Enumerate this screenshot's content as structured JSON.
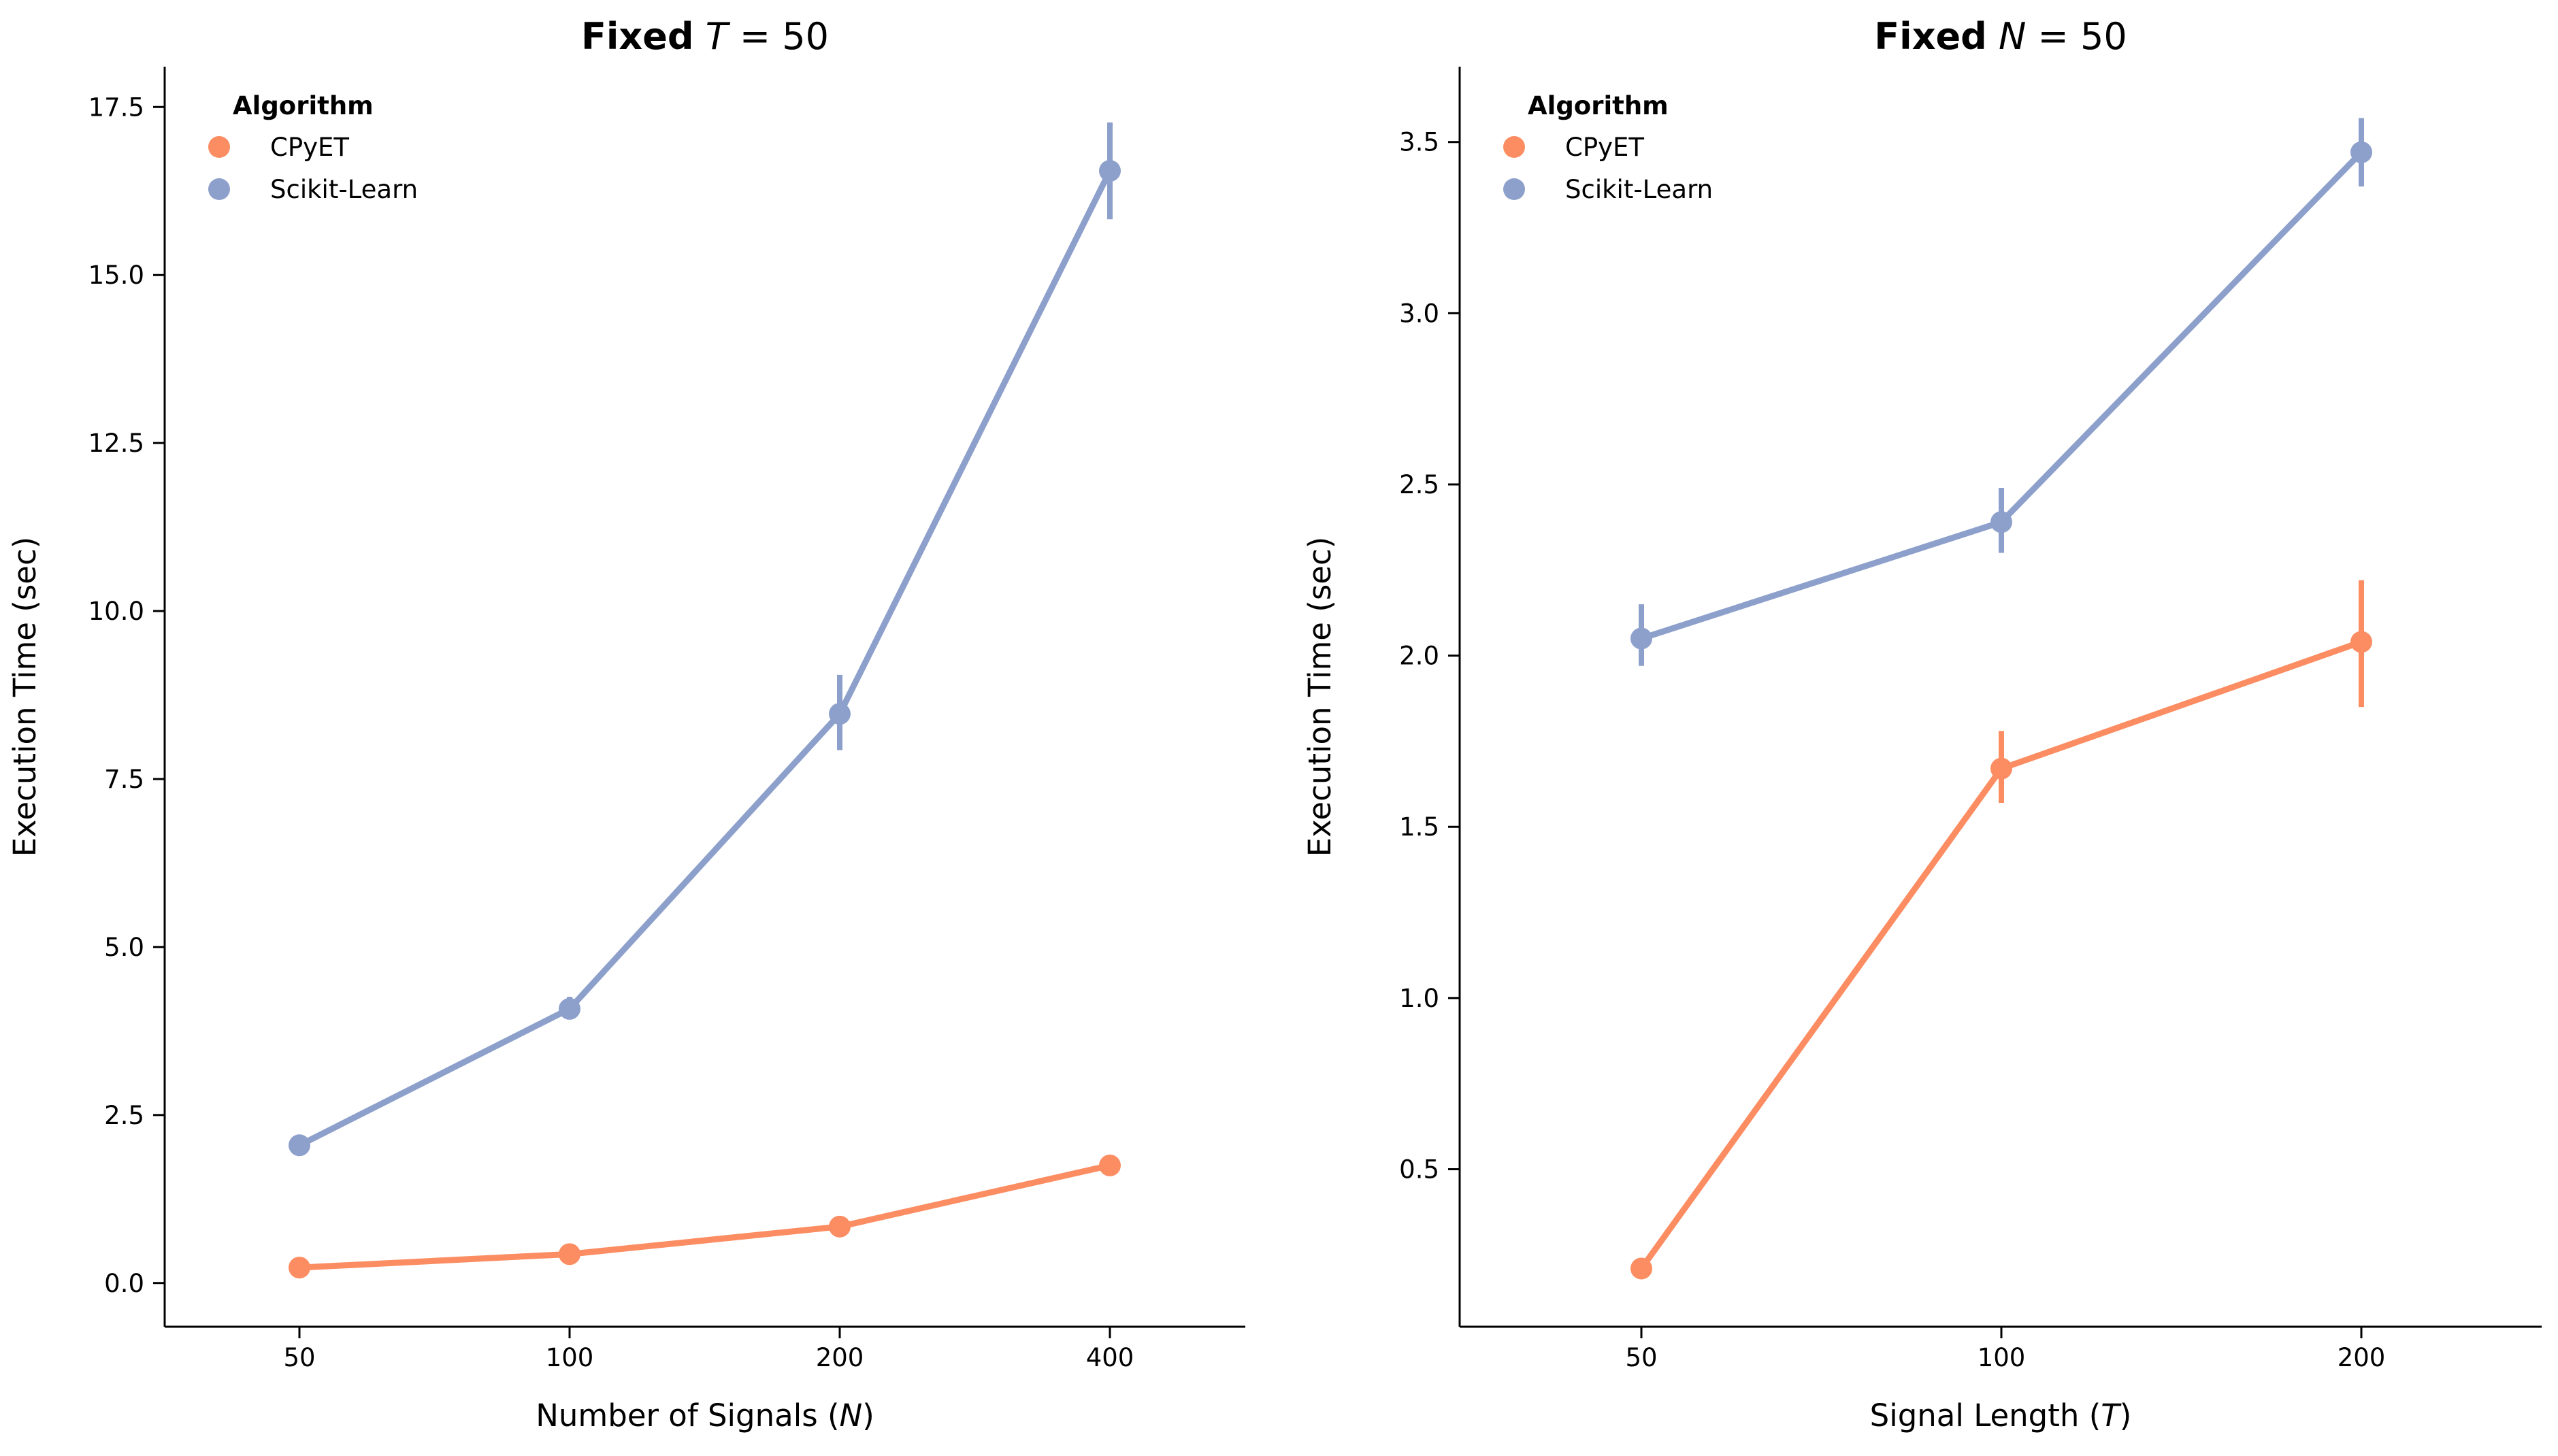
{
  "chart_data": [
    {
      "type": "line",
      "title_bold": "Fixed",
      "title_var": "T",
      "title_rest": " = 50",
      "xlabel_pre": "Number of Signals (",
      "xlabel_var": "N",
      "xlabel_post": ")",
      "ylabel": "Execution Time (sec)",
      "categories": [
        "50",
        "100",
        "200",
        "400"
      ],
      "ylim": [
        -0.65,
        18.1
      ],
      "yticks": [
        0.0,
        2.5,
        5.0,
        7.5,
        10.0,
        12.5,
        15.0,
        17.5
      ],
      "ytick_labels": [
        "0.0",
        "2.5",
        "5.0",
        "7.5",
        "10.0",
        "12.5",
        "15.0",
        "17.5"
      ],
      "legend_title": "Algorithm",
      "legend_position": "top-left",
      "grid": false,
      "series": [
        {
          "name": "CPyET",
          "color": "#fc8d62",
          "values": [
            0.23,
            0.43,
            0.84,
            1.75
          ],
          "err_low": [
            0.19,
            0.39,
            0.79,
            1.68
          ],
          "err_high": [
            0.27,
            0.47,
            0.89,
            1.82
          ]
        },
        {
          "name": "Scikit-Learn",
          "color": "#8da0cb",
          "values": [
            2.05,
            4.08,
            8.47,
            16.55
          ],
          "err_low": [
            1.97,
            3.92,
            7.93,
            15.83
          ],
          "err_high": [
            2.13,
            4.26,
            9.05,
            17.27
          ]
        }
      ]
    },
    {
      "type": "line",
      "title_bold": "Fixed",
      "title_var": "N",
      "title_rest": " = 50",
      "xlabel_pre": "Signal Length (",
      "xlabel_var": "T",
      "xlabel_post": ")",
      "ylabel": "Execution Time (sec)",
      "categories": [
        "50",
        "100",
        "200"
      ],
      "ylim": [
        0.04,
        3.72
      ],
      "yticks": [
        0.5,
        1.0,
        1.5,
        2.0,
        2.5,
        3.0,
        3.5
      ],
      "ytick_labels": [
        "0.5",
        "1.0",
        "1.5",
        "2.0",
        "2.5",
        "3.0",
        "3.5"
      ],
      "legend_title": "Algorithm",
      "legend_position": "top-left",
      "grid": false,
      "series": [
        {
          "name": "CPyET",
          "color": "#fc8d62",
          "values": [
            0.21,
            1.67,
            2.04
          ],
          "err_low": [
            0.19,
            1.57,
            1.85
          ],
          "err_high": [
            0.23,
            1.78,
            2.22
          ]
        },
        {
          "name": "Scikit-Learn",
          "color": "#8da0cb",
          "values": [
            2.05,
            2.39,
            3.47
          ],
          "err_low": [
            1.97,
            2.3,
            3.37
          ],
          "err_high": [
            2.15,
            2.49,
            3.57
          ]
        }
      ]
    }
  ]
}
